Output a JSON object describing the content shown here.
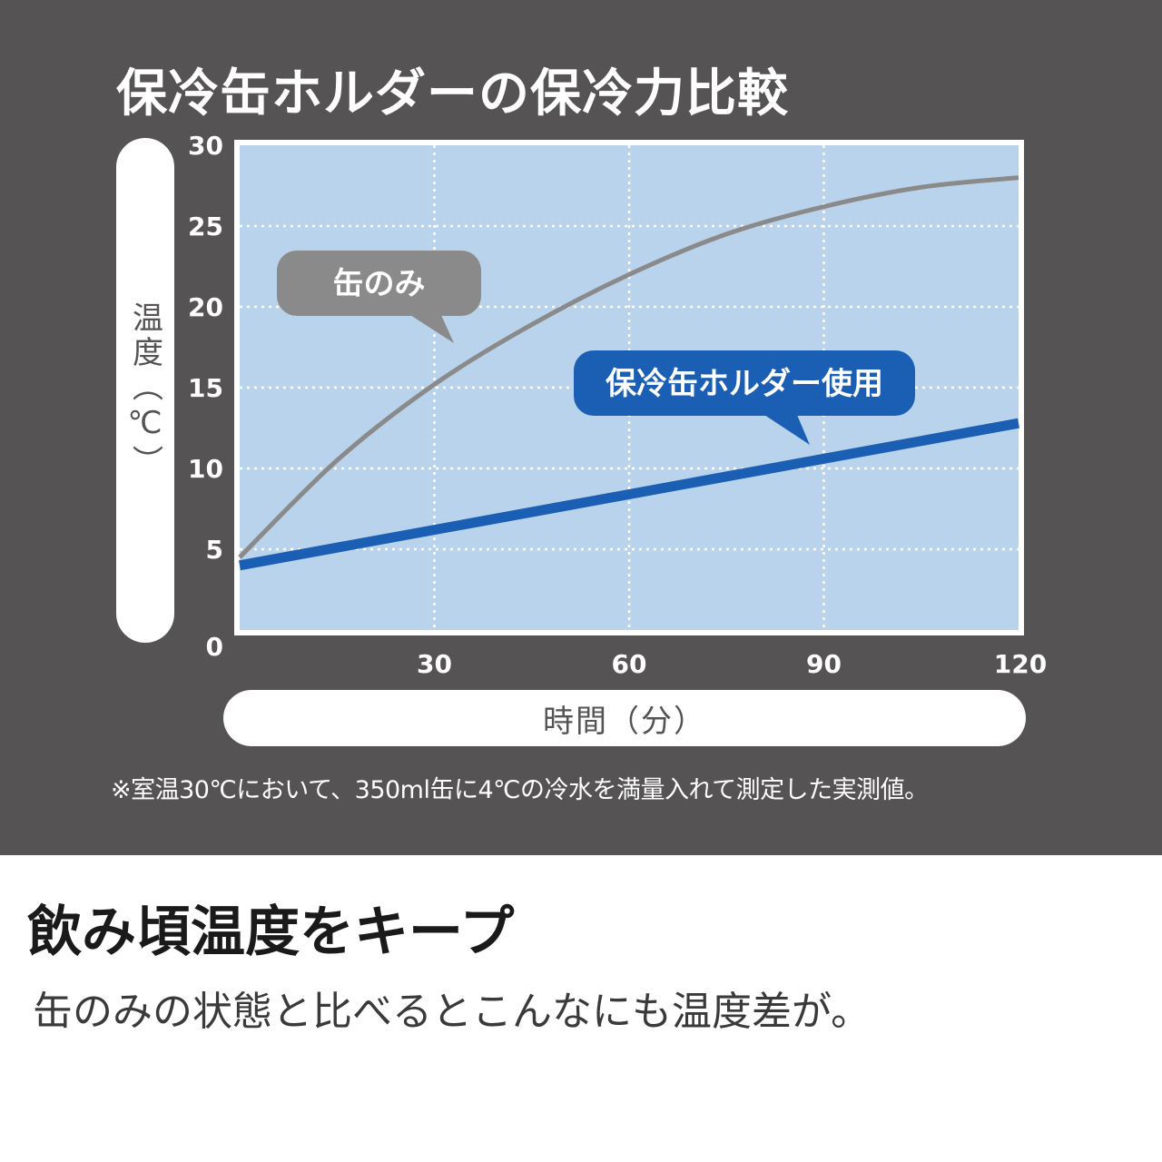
{
  "header": {
    "title": "保冷缶ホルダーの保冷力比較"
  },
  "chart_data": {
    "type": "line",
    "title": "保冷缶ホルダーの保冷力比較",
    "xlabel": "時間（分）",
    "ylabel": "温度（℃）",
    "xlim": [
      0,
      120
    ],
    "ylim": [
      0,
      30
    ],
    "x_ticks": [
      "30",
      "60",
      "90",
      "120"
    ],
    "y_ticks": [
      "30",
      "25",
      "20",
      "15",
      "10",
      "5",
      "0"
    ],
    "grid": true,
    "series": [
      {
        "name": "缶のみ",
        "color": "#8a8a8a",
        "x": [
          0,
          15,
          30,
          45,
          60,
          75,
          90,
          105,
          120
        ],
        "y": [
          4.5,
          10.5,
          15.2,
          18.9,
          22.0,
          24.5,
          26.2,
          27.4,
          28.0
        ]
      },
      {
        "name": "保冷缶ホルダー使用",
        "color": "#1a5fb4",
        "x": [
          0,
          30,
          60,
          90,
          120
        ],
        "y": [
          4.0,
          6.2,
          8.4,
          10.6,
          12.8
        ]
      }
    ],
    "callouts": [
      {
        "text": "缶のみ",
        "fill": "#8a8a8a"
      },
      {
        "text": "保冷缶ホルダー使用",
        "fill": "#1a5fb4"
      }
    ],
    "plot_background": "#b9d3ec"
  },
  "footnote": "※室温30℃において、350ml缶に4℃の冷水を満量入れて測定した実測値。",
  "headline": "飲み頃温度をキープ",
  "subline": "缶のみの状態と比べるとこんなにも温度差が。"
}
